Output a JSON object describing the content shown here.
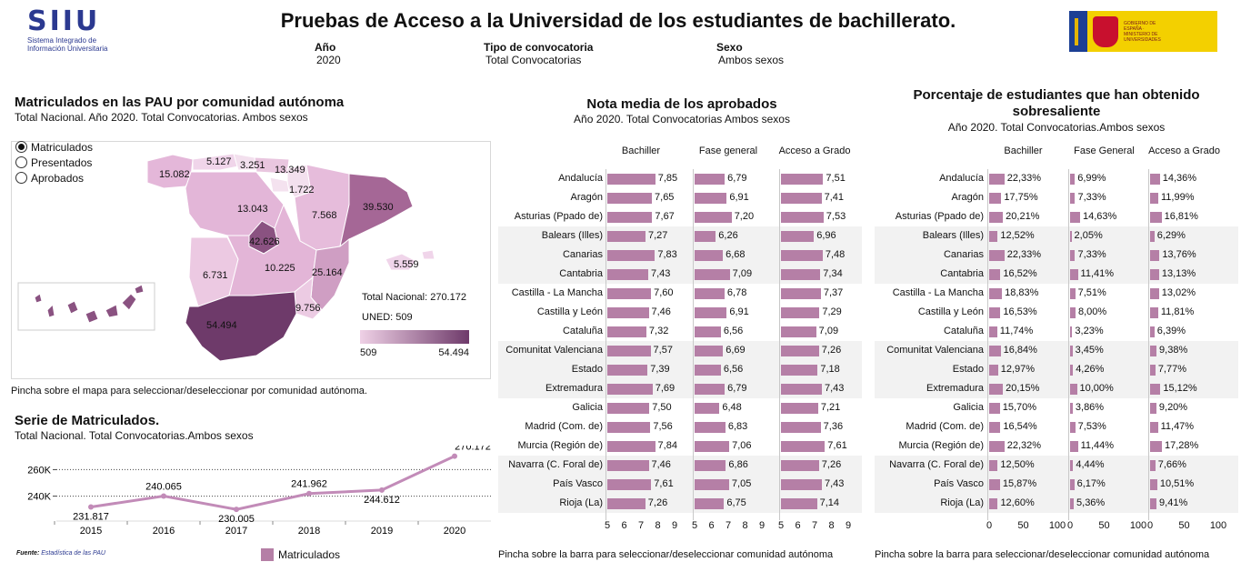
{
  "header": {
    "logo_text": "SIIU",
    "logo_sub": "Sistema Integrado de Información Universitaria",
    "title": "Pruebas de Acceso a la Universidad de los estudiantes de bachillerato.",
    "filters": [
      {
        "label": "Año",
        "value": "2020"
      },
      {
        "label": "Tipo de convocatoria",
        "value": "Total Convocatorias"
      },
      {
        "label": "Sexo",
        "value": "Ambos sexos"
      }
    ],
    "gov_logo_text": "GOBIERNO DE ESPAÑA · MINISTERIO DE UNIVERSIDADES"
  },
  "map": {
    "title": "Matriculados en las PAU por comunidad autónoma",
    "subtitle": "Total Nacional. Año 2020. Total Convocatorias. Ambos sexos",
    "options": [
      "Matriculados",
      "Presentados",
      "Aprobados"
    ],
    "selected_option": "Matriculados",
    "region_values": [
      "15.082",
      "5.127",
      "3.251",
      "13.349",
      "1.722",
      "13.043",
      "7.568",
      "39.530",
      "42.626",
      "6.731",
      "10.225",
      "25.164",
      "5.559",
      "9.756",
      "54.494"
    ],
    "total_label": "Total Nacional: 270.172",
    "uned_label": "UNED: 509",
    "legend_min": "509",
    "legend_max": "54.494",
    "color_low": "#efd1e6",
    "color_high": "#6e3a6a",
    "hint": "Pincha sobre el mapa para seleccionar/deseleccionar por comunidad autónoma."
  },
  "series": {
    "title": "Serie de Matriculados.",
    "subtitle": "Total Nacional. Total Convocatorias.Ambos sexos",
    "legend": "Matriculados",
    "source_label": "Fuente:",
    "source_text": "Estadística de las PAU"
  },
  "chart_data": [
    {
      "type": "line",
      "x": [
        "2015",
        "2016",
        "2017",
        "2018",
        "2019",
        "2020"
      ],
      "series": [
        {
          "name": "Matriculados",
          "values": [
            231817,
            240065,
            230005,
            241962,
            244612,
            270172
          ]
        }
      ],
      "data_labels": [
        "231.817",
        "240.065",
        "230.005",
        "241.962",
        "244.612",
        "270.172"
      ],
      "y_ticks": [
        "240K",
        "260K"
      ],
      "y_tick_values": [
        240000,
        260000
      ],
      "ylim": [
        226000,
        274000
      ],
      "color": "#c28bb8"
    },
    {
      "type": "bar",
      "title": "Nota media de los aprobados",
      "subtitle": "Año 2020. Total Convocatorias Ambos sexos",
      "categories": [
        "Andalucía",
        "Aragón",
        "Asturias (Ppado de)",
        "Balears (Illes)",
        "Canarias",
        "Cantabria",
        "Castilla - La Mancha",
        "Castilla y León",
        "Cataluña",
        "Comunitat Valenciana",
        "Estado",
        "Extremadura",
        "Galicia",
        "Madrid (Com. de)",
        "Murcia (Región de)",
        "Navarra (C. Foral de)",
        "País Vasco",
        "Rioja (La)"
      ],
      "series": [
        {
          "name": "Bachiller",
          "values": [
            7.85,
            7.65,
            7.67,
            7.27,
            7.83,
            7.43,
            7.6,
            7.46,
            7.32,
            7.57,
            7.39,
            7.69,
            7.5,
            7.56,
            7.84,
            7.46,
            7.61,
            7.26
          ],
          "labels": [
            "7,85",
            "7,65",
            "7,67",
            "7,27",
            "7,83",
            "7,43",
            "7,60",
            "7,46",
            "7,32",
            "7,57",
            "7,39",
            "7,69",
            "7,50",
            "7,56",
            "7,84",
            "7,46",
            "7,61",
            "7,26"
          ]
        },
        {
          "name": "Fase general",
          "values": [
            6.79,
            6.91,
            7.2,
            6.26,
            6.68,
            7.09,
            6.78,
            6.91,
            6.56,
            6.69,
            6.56,
            6.79,
            6.48,
            6.83,
            7.06,
            6.86,
            7.05,
            6.75
          ],
          "labels": [
            "6,79",
            "6,91",
            "7,20",
            "6,26",
            "6,68",
            "7,09",
            "6,78",
            "6,91",
            "6,56",
            "6,69",
            "6,56",
            "6,79",
            "6,48",
            "6,83",
            "7,06",
            "6,86",
            "7,05",
            "6,75"
          ]
        },
        {
          "name": "Acceso a Grado",
          "values": [
            7.51,
            7.41,
            7.53,
            6.96,
            7.48,
            7.34,
            7.37,
            7.29,
            7.09,
            7.26,
            7.18,
            7.43,
            7.21,
            7.36,
            7.61,
            7.26,
            7.43,
            7.14
          ],
          "labels": [
            "7,51",
            "7,41",
            "7,53",
            "6,96",
            "7,48",
            "7,34",
            "7,37",
            "7,29",
            "7,09",
            "7,26",
            "7,18",
            "7,43",
            "7,21",
            "7,36",
            "7,61",
            "7,26",
            "7,43",
            "7,14"
          ]
        }
      ],
      "xlim": [
        5,
        9
      ],
      "x_ticks": [
        "5",
        "6",
        "7",
        "8",
        "9"
      ],
      "hint": "Pincha sobre la barra para seleccionar/deseleccionar comunidad autónoma"
    },
    {
      "type": "bar",
      "title": "Porcentaje de estudiantes que han obtenido sobresaliente",
      "subtitle": "Año 2020. Total Convocatorias.Ambos sexos",
      "categories": [
        "Andalucía",
        "Aragón",
        "Asturias (Ppado de)",
        "Balears (Illes)",
        "Canarias",
        "Cantabria",
        "Castilla - La Mancha",
        "Castilla y León",
        "Cataluña",
        "Comunitat Valenciana",
        "Estado",
        "Extremadura",
        "Galicia",
        "Madrid (Com. de)",
        "Murcia (Región de)",
        "Navarra (C. Foral de)",
        "País Vasco",
        "Rioja (La)"
      ],
      "series": [
        {
          "name": "Bachiller",
          "values": [
            22.33,
            17.75,
            20.21,
            12.52,
            22.33,
            16.52,
            18.83,
            16.53,
            11.74,
            16.84,
            12.97,
            20.15,
            15.7,
            16.54,
            22.32,
            12.5,
            15.87,
            12.6
          ],
          "labels": [
            "22,33%",
            "17,75%",
            "20,21%",
            "12,52%",
            "22,33%",
            "16,52%",
            "18,83%",
            "16,53%",
            "11,74%",
            "16,84%",
            "12,97%",
            "20,15%",
            "15,70%",
            "16,54%",
            "22,32%",
            "12,50%",
            "15,87%",
            "12,60%"
          ]
        },
        {
          "name": "Fase General",
          "values": [
            6.99,
            7.33,
            14.63,
            2.05,
            7.33,
            11.41,
            7.51,
            8.0,
            3.23,
            3.45,
            4.26,
            10.0,
            3.86,
            7.53,
            11.44,
            4.44,
            6.17,
            5.36
          ],
          "labels": [
            "6,99%",
            "7,33%",
            "14,63%",
            "2,05%",
            "7,33%",
            "11,41%",
            "7,51%",
            "8,00%",
            "3,23%",
            "3,45%",
            "4,26%",
            "10,00%",
            "3,86%",
            "7,53%",
            "11,44%",
            "4,44%",
            "6,17%",
            "5,36%"
          ]
        },
        {
          "name": "Acceso a Grado",
          "values": [
            14.36,
            11.99,
            16.81,
            6.29,
            13.76,
            13.13,
            13.02,
            11.81,
            6.39,
            9.38,
            7.77,
            15.12,
            9.2,
            11.47,
            17.28,
            7.66,
            10.51,
            9.41
          ],
          "labels": [
            "14,36%",
            "11,99%",
            "16,81%",
            "6,29%",
            "13,76%",
            "13,13%",
            "13,02%",
            "11,81%",
            "6,39%",
            "9,38%",
            "7,77%",
            "15,12%",
            "9,20%",
            "11,47%",
            "17,28%",
            "7,66%",
            "10,51%",
            "9,41%"
          ]
        }
      ],
      "xlim": [
        0,
        100
      ],
      "x_ticks": [
        "0",
        "50",
        "100"
      ],
      "hint": "Pincha sobre la barra para seleccionar/deseleccionar comunidad autónoma"
    }
  ]
}
